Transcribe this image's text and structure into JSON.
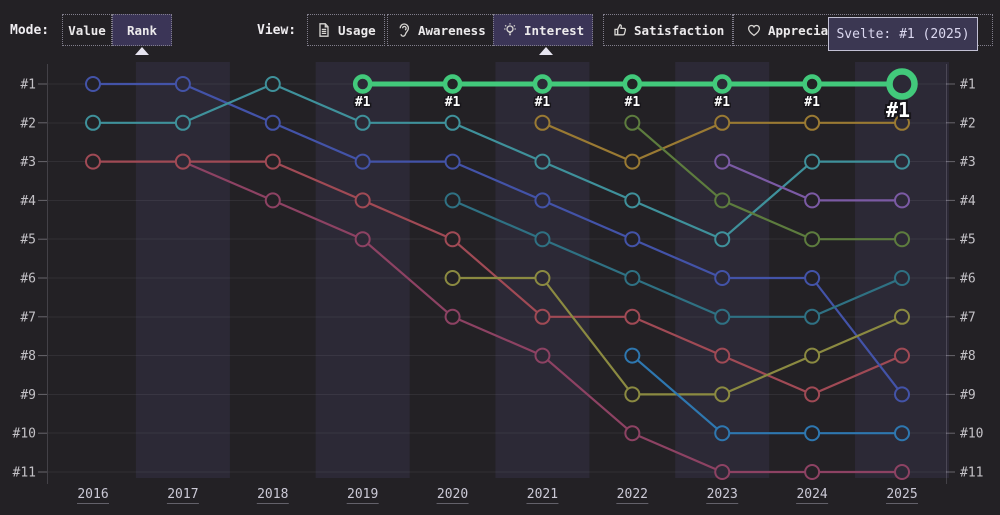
{
  "header": {
    "mode_label": "Mode:",
    "mode_options": [
      {
        "label": "Value",
        "selected": false
      },
      {
        "label": "Rank",
        "selected": true
      }
    ],
    "view_label": "View:",
    "view_options": [
      {
        "label": "Usage",
        "icon": "document-icon",
        "selected": false
      },
      {
        "label": "Awareness",
        "icon": "ear-icon",
        "selected": false
      },
      {
        "label": "Interest",
        "icon": "lightbulb-icon",
        "selected": true
      },
      {
        "label": "Satisfaction",
        "icon": "thumbs-up-icon",
        "selected": false
      },
      {
        "label": "Appreciation",
        "icon": "heart-icon",
        "selected": false
      }
    ]
  },
  "chart_data": {
    "type": "line",
    "subtype": "bump-rank-chart",
    "tooltip": "Svelte: #1 (2025)",
    "x_labels": [
      "2016",
      "2017",
      "2018",
      "2019",
      "2020",
      "2021",
      "2022",
      "2023",
      "2024",
      "2025"
    ],
    "y_tick_labels": [
      "#1",
      "#2",
      "#3",
      "#4",
      "#5",
      "#6",
      "#7",
      "#8",
      "#9",
      "#10",
      "#11"
    ],
    "y_range": [
      1,
      11
    ],
    "banded_years": [
      "2017",
      "2019",
      "2021",
      "2023",
      "2025"
    ],
    "grid": "horizontal",
    "axis_labels_on_both_sides": true,
    "highlight": {
      "name": "Svelte",
      "color": "#42c97b",
      "ranks": [
        null,
        null,
        null,
        1,
        1,
        1,
        1,
        1,
        1,
        1
      ],
      "point_label": "#1",
      "emphasized_last_point": true
    },
    "series": [
      {
        "id": "series-maroon",
        "color": "#8d4263",
        "ranks": [
          null,
          3,
          4,
          5,
          7,
          8,
          10,
          11,
          11,
          11
        ]
      },
      {
        "id": "series-red",
        "color": "#a04a55",
        "ranks": [
          3,
          3,
          3,
          4,
          5,
          7,
          7,
          8,
          9,
          8
        ]
      },
      {
        "id": "series-indigo",
        "color": "#4353a8",
        "ranks": [
          1,
          1,
          2,
          3,
          3,
          4,
          5,
          6,
          6,
          9
        ]
      },
      {
        "id": "series-teal",
        "color": "#3f919b",
        "ranks": [
          2,
          2,
          1,
          2,
          2,
          3,
          4,
          5,
          3,
          3
        ]
      },
      {
        "id": "series-cyan",
        "color": "#2f7183",
        "ranks": [
          null,
          null,
          null,
          null,
          4,
          5,
          6,
          7,
          7,
          6
        ]
      },
      {
        "id": "series-olive",
        "color": "#8b8a41",
        "ranks": [
          null,
          null,
          null,
          null,
          6,
          6,
          9,
          9,
          8,
          7
        ]
      },
      {
        "id": "series-gold",
        "color": "#9a7a33",
        "ranks": [
          null,
          null,
          null,
          null,
          null,
          2,
          3,
          2,
          2,
          2
        ]
      },
      {
        "id": "series-darkgreen",
        "color": "#5d7c3e",
        "ranks": [
          null,
          null,
          null,
          null,
          null,
          null,
          2,
          4,
          5,
          5
        ]
      },
      {
        "id": "series-brightblue",
        "color": "#2e77b0",
        "ranks": [
          null,
          null,
          null,
          null,
          null,
          null,
          8,
          10,
          10,
          10
        ]
      },
      {
        "id": "series-purple",
        "color": "#7b5aa4",
        "ranks": [
          null,
          null,
          null,
          null,
          null,
          null,
          null,
          3,
          4,
          4
        ]
      }
    ]
  },
  "colors": {
    "background": "#232125",
    "band": "#2c2936",
    "grid": "rgba(215,212,225,0.08)",
    "axis_line": "rgba(215,212,225,0.18)",
    "tick": "rgba(215,212,225,0.38)",
    "tick_label": "#c3c1c6",
    "year_label": "#cbc9d6",
    "year_underline": "rgba(205,202,220,0.38)",
    "point_label": "#ffffff",
    "point_label_outline": "#17151a",
    "accent_green": "#42c97b",
    "selected_button_bg": "#3b3557"
  }
}
